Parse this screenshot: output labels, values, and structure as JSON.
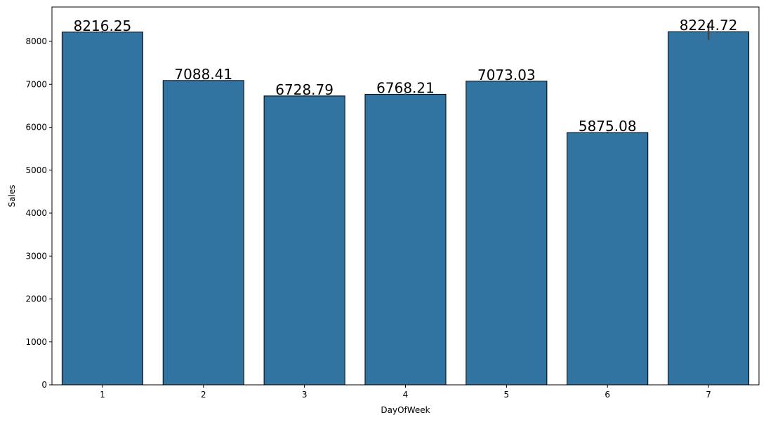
{
  "chart_data": {
    "type": "bar",
    "xlabel": "DayOfWeek",
    "ylabel": "Sales",
    "categories": [
      "1",
      "2",
      "3",
      "4",
      "5",
      "6",
      "7"
    ],
    "values": [
      8216.25,
      7088.41,
      6728.79,
      6768.21,
      7073.03,
      5875.08,
      8224.72
    ],
    "data_labels": [
      "8216.25",
      "7088.41",
      "6728.79",
      "6768.21",
      "7073.03",
      "5875.08",
      "8224.72"
    ],
    "error_bars": [
      [
        8195,
        8240
      ],
      [
        7070,
        7105
      ],
      [
        6710,
        6750
      ],
      [
        6750,
        6785
      ],
      [
        7055,
        7090
      ],
      [
        5855,
        5895
      ],
      [
        8030,
        8420
      ]
    ],
    "ylim": [
      0,
      8800
    ],
    "yticks": [
      0,
      1000,
      2000,
      3000,
      4000,
      5000,
      6000,
      7000,
      8000
    ],
    "grid": false,
    "bar_color": "#3274a1",
    "bar_edge_color": "#000000",
    "error_bar_color": "#444444"
  }
}
